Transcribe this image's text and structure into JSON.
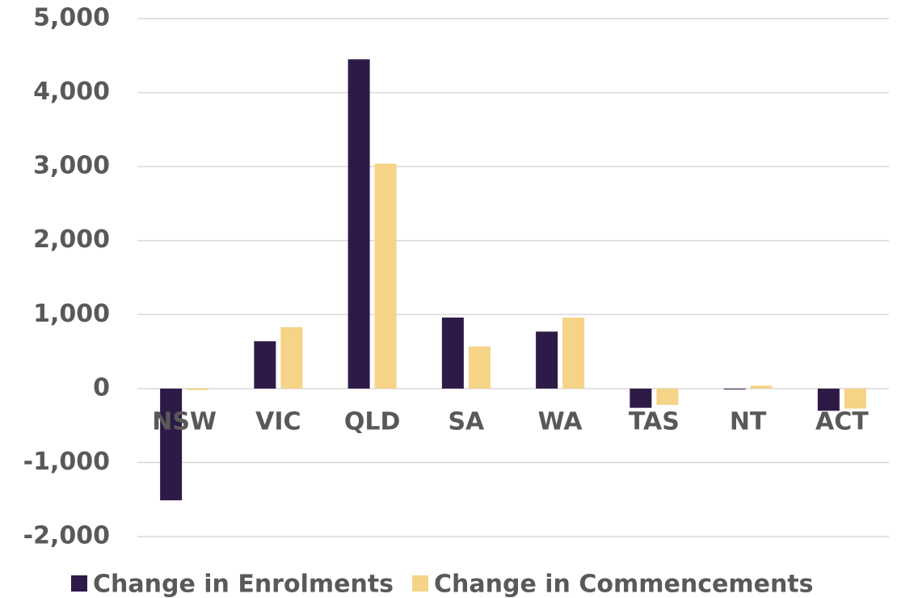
{
  "chart_data": {
    "type": "bar",
    "categories": [
      "NSW",
      "VIC",
      "QLD",
      "SA",
      "WA",
      "TAS",
      "NT",
      "ACT"
    ],
    "series": [
      {
        "name": "Change in Enrolments",
        "color": "#2e1a47",
        "values": [
          -1510,
          640,
          4450,
          960,
          770,
          -260,
          -10,
          -300
        ]
      },
      {
        "name": "Change in Commencements",
        "color": "#f5d387",
        "values": [
          -20,
          830,
          3040,
          570,
          960,
          -220,
          40,
          -270
        ]
      }
    ],
    "ylim": [
      -2000,
      5000
    ],
    "yticks": [
      {
        "value": -2000,
        "label": "-2,000"
      },
      {
        "value": -1000,
        "label": "-1,000"
      },
      0,
      {
        "value": 1000,
        "label": "1,000"
      },
      {
        "value": 2000,
        "label": "2,000"
      },
      {
        "value": 3000,
        "label": "3,000"
      },
      {
        "value": 4000,
        "label": "4,000"
      },
      {
        "value": 5000,
        "label": "5,000"
      }
    ],
    "grid": true,
    "legend": "bottom"
  }
}
